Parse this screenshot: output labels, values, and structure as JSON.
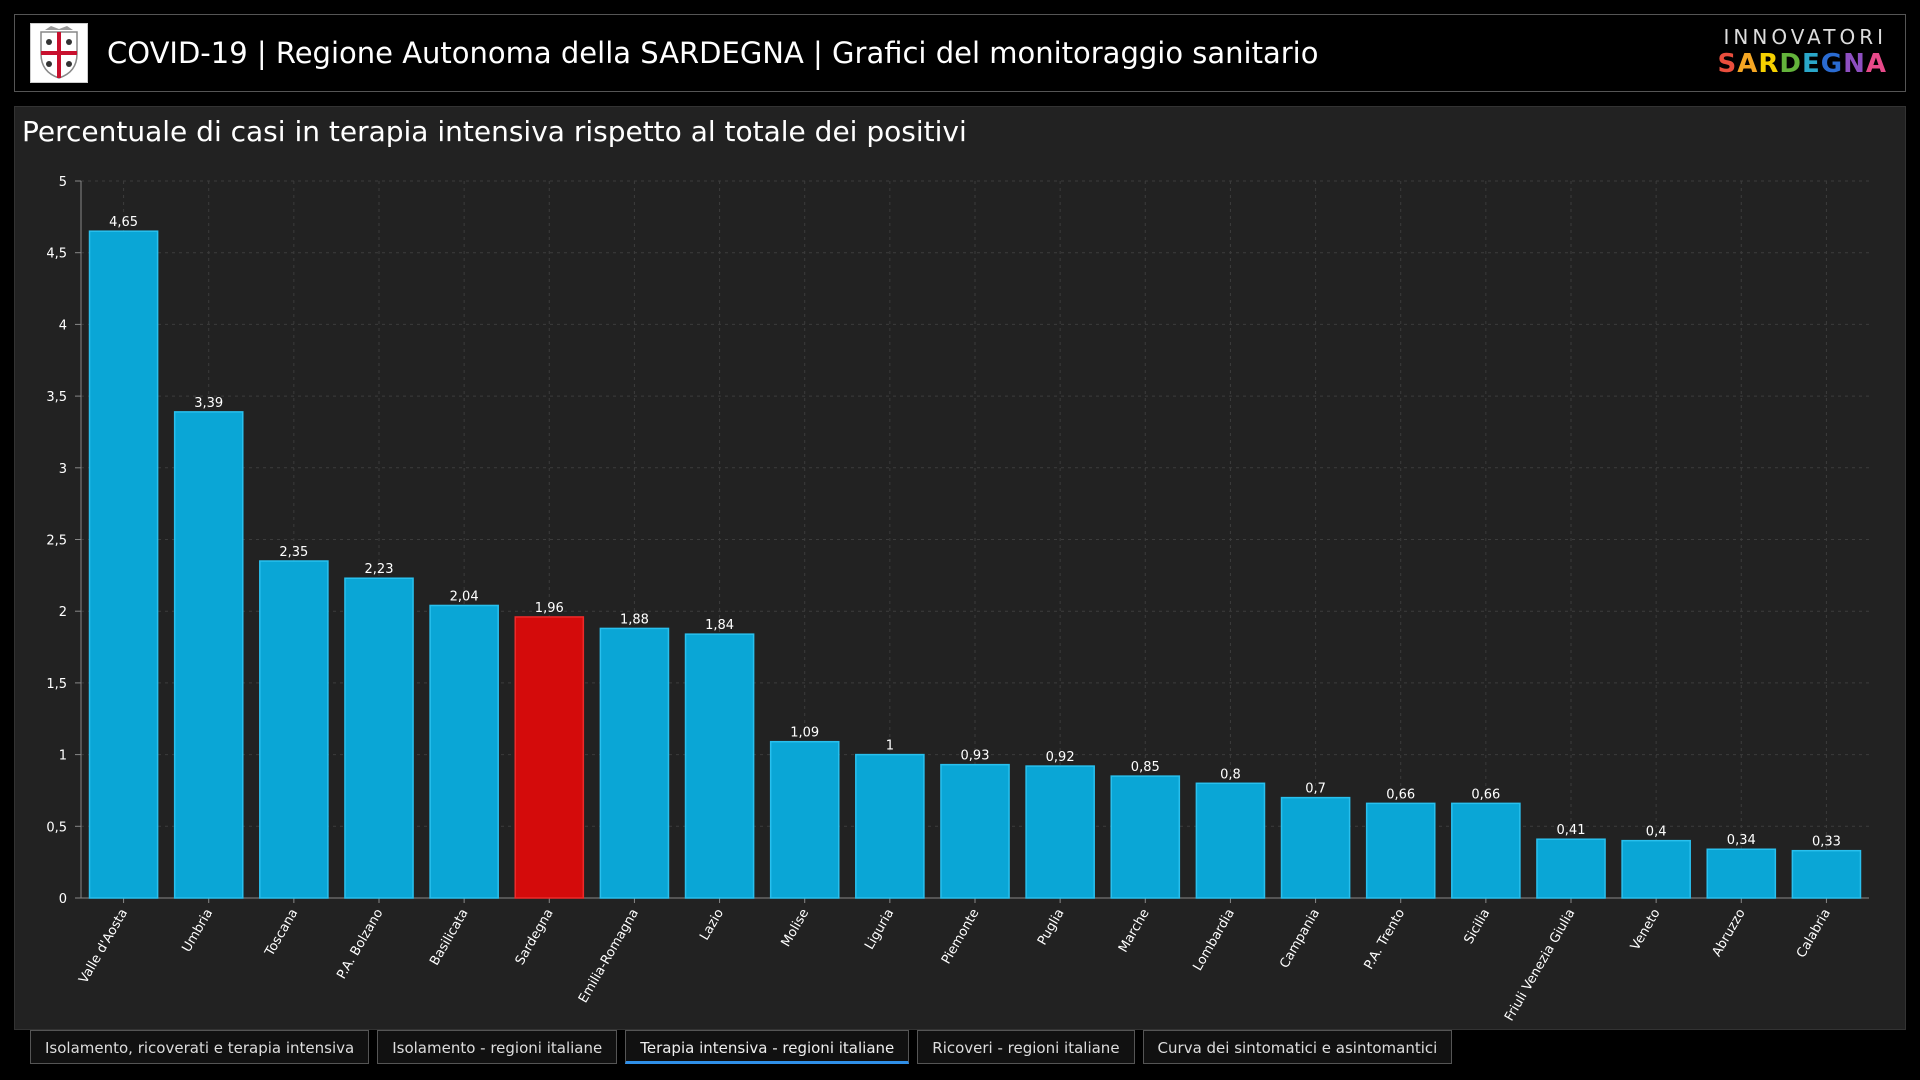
{
  "header": {
    "title": "COVID-19 | Regione Autonoma della SARDEGNA | Grafici del monitoraggio sanitario",
    "brand_top": "INNOVATORI",
    "brand_bottom": "SARDEGNA",
    "brand_letter_colors": [
      "#e94e3d",
      "#f5a623",
      "#f5d000",
      "#63b33b",
      "#2aa7c9",
      "#2a6bd1",
      "#8e4fc1",
      "#e84a8a"
    ]
  },
  "tabs": [
    {
      "label": "Isolamento, ricoverati e terapia intensiva",
      "active": false
    },
    {
      "label": "Isolamento - regioni italiane",
      "active": false
    },
    {
      "label": "Terapia intensiva - regioni italiane",
      "active": true
    },
    {
      "label": "Ricoveri - regioni italiane",
      "active": false
    },
    {
      "label": "Curva dei sintomatici e asintomantici",
      "active": false
    }
  ],
  "colors": {
    "bar": "#0aa6d6",
    "bar_border": "#29c0ee",
    "highlight": "#d40b0b",
    "grid": "#3c3c3c",
    "axis_text": "#ffffff"
  },
  "chart_data": {
    "type": "bar",
    "title": "Percentuale di casi in terapia intensiva rispetto al totale dei positivi",
    "categories": [
      "Valle d'Aosta",
      "Umbria",
      "Toscana",
      "P.A. Bolzano",
      "Basilicata",
      "Sardegna",
      "Emilia-Romagna",
      "Lazio",
      "Molise",
      "Liguria",
      "Piemonte",
      "Puglia",
      "Marche",
      "Lombardia",
      "Campania",
      "P.A. Trento",
      "Sicilia",
      "Friuli Venezia Giulia",
      "Veneto",
      "Abruzzo",
      "Calabria"
    ],
    "values": [
      4.65,
      3.39,
      2.35,
      2.23,
      2.04,
      1.96,
      1.88,
      1.84,
      1.09,
      1,
      0.93,
      0.92,
      0.85,
      0.8,
      0.7,
      0.66,
      0.66,
      0.41,
      0.4,
      0.34,
      0.33
    ],
    "value_labels": [
      "4,65",
      "3,39",
      "2,35",
      "2,23",
      "2,04",
      "1,96",
      "1,88",
      "1,84",
      "1,09",
      "1",
      "0,93",
      "0,92",
      "0,85",
      "0,8",
      "0,7",
      "0,66",
      "0,66",
      "0,41",
      "0,4",
      "0,34",
      "0,33"
    ],
    "highlight_category": "Sardegna",
    "yticks": [
      0,
      0.5,
      1,
      1.5,
      2,
      2.5,
      3,
      3.5,
      4,
      4.5,
      5
    ],
    "ytick_labels": [
      "0",
      "0,5",
      "1",
      "1,5",
      "2",
      "2,5",
      "3",
      "3,5",
      "4",
      "4,5",
      "5"
    ],
    "ylim": [
      0,
      5
    ],
    "xlabel": "",
    "ylabel": "",
    "grid": true
  }
}
